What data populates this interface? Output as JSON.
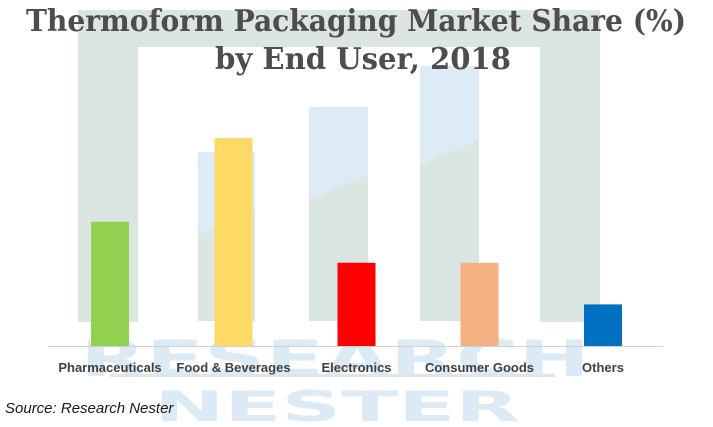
{
  "chart_data": {
    "type": "bar",
    "title_lines": [
      "Thermoform Packaging Market Share (%)",
      "by End User, 2018"
    ],
    "title": "Thermoform Packaging Market Share (%) by End User, 2018",
    "xlabel": "",
    "ylabel": "",
    "categories": [
      "Pharmaceuticals",
      "Food & Beverages",
      "Electronics",
      "Consumer Goods",
      "Others"
    ],
    "values": [
      23.0,
      38.5,
      15.4,
      15.4,
      7.7
    ],
    "colors": [
      "#92D050",
      "#FFD966",
      "#FF0000",
      "#F4B183",
      "#0070C0"
    ],
    "ylim": [
      0,
      40
    ],
    "grid": false,
    "legend": "none",
    "data_labels_shown": false,
    "source": "Source: Research Nester"
  },
  "watermark": {
    "line1": "RESEARCH",
    "line2": "NESTER",
    "frame_color": "#dbe5e1",
    "accent_color": "#ddebf7"
  },
  "axis": {
    "baseline_color": "#d0d0d0"
  }
}
